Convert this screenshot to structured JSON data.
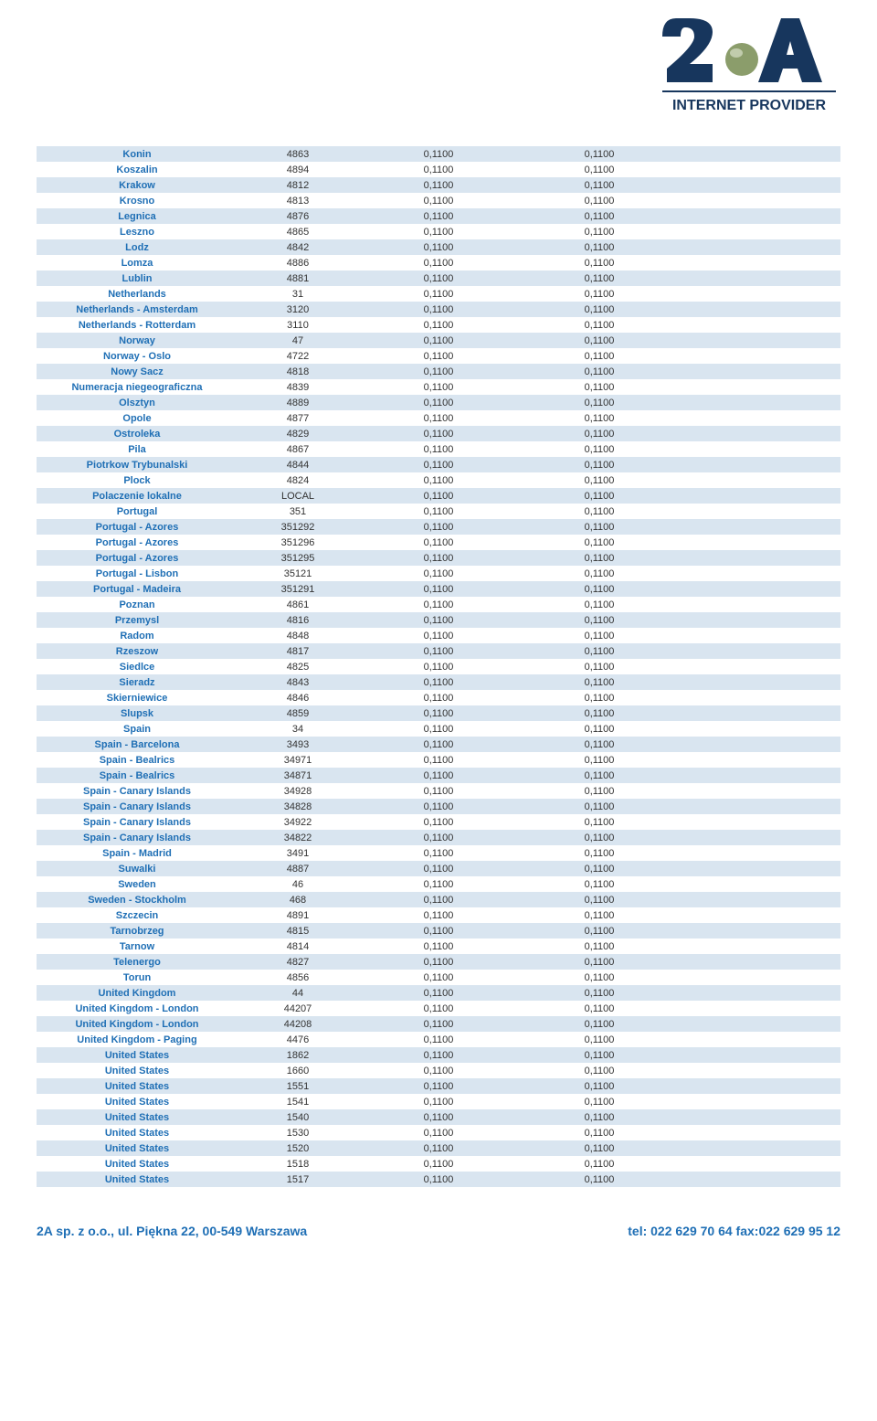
{
  "logo": {
    "main_text": "2A",
    "tagline": "INTERNET PROVIDER",
    "primary_color": "#17365d",
    "sphere_color": "#8b9d6b"
  },
  "table": {
    "row_bg_odd": "#d9e5f0",
    "row_bg_even": "#ffffff",
    "name_color": "#1f6fb5",
    "value_color": "#333333",
    "font_size": 11,
    "rows": [
      {
        "name": "Konin",
        "code": "4863",
        "v1": "0,1100",
        "v2": "0,1100"
      },
      {
        "name": "Koszalin",
        "code": "4894",
        "v1": "0,1100",
        "v2": "0,1100"
      },
      {
        "name": "Krakow",
        "code": "4812",
        "v1": "0,1100",
        "v2": "0,1100"
      },
      {
        "name": "Krosno",
        "code": "4813",
        "v1": "0,1100",
        "v2": "0,1100"
      },
      {
        "name": "Legnica",
        "code": "4876",
        "v1": "0,1100",
        "v2": "0,1100"
      },
      {
        "name": "Leszno",
        "code": "4865",
        "v1": "0,1100",
        "v2": "0,1100"
      },
      {
        "name": "Lodz",
        "code": "4842",
        "v1": "0,1100",
        "v2": "0,1100"
      },
      {
        "name": "Lomza",
        "code": "4886",
        "v1": "0,1100",
        "v2": "0,1100"
      },
      {
        "name": "Lublin",
        "code": "4881",
        "v1": "0,1100",
        "v2": "0,1100"
      },
      {
        "name": "Netherlands",
        "code": "31",
        "v1": "0,1100",
        "v2": "0,1100"
      },
      {
        "name": "Netherlands - Amsterdam",
        "code": "3120",
        "v1": "0,1100",
        "v2": "0,1100"
      },
      {
        "name": "Netherlands - Rotterdam",
        "code": "3110",
        "v1": "0,1100",
        "v2": "0,1100"
      },
      {
        "name": "Norway",
        "code": "47",
        "v1": "0,1100",
        "v2": "0,1100"
      },
      {
        "name": "Norway - Oslo",
        "code": "4722",
        "v1": "0,1100",
        "v2": "0,1100"
      },
      {
        "name": "Nowy Sacz",
        "code": "4818",
        "v1": "0,1100",
        "v2": "0,1100"
      },
      {
        "name": "Numeracja niegeograficzna",
        "code": "4839",
        "v1": "0,1100",
        "v2": "0,1100"
      },
      {
        "name": "Olsztyn",
        "code": "4889",
        "v1": "0,1100",
        "v2": "0,1100"
      },
      {
        "name": "Opole",
        "code": "4877",
        "v1": "0,1100",
        "v2": "0,1100"
      },
      {
        "name": "Ostroleka",
        "code": "4829",
        "v1": "0,1100",
        "v2": "0,1100"
      },
      {
        "name": "Pila",
        "code": "4867",
        "v1": "0,1100",
        "v2": "0,1100"
      },
      {
        "name": "Piotrkow Trybunalski",
        "code": "4844",
        "v1": "0,1100",
        "v2": "0,1100"
      },
      {
        "name": "Plock",
        "code": "4824",
        "v1": "0,1100",
        "v2": "0,1100"
      },
      {
        "name": "Polaczenie lokalne",
        "code": "LOCAL",
        "v1": "0,1100",
        "v2": "0,1100"
      },
      {
        "name": "Portugal",
        "code": "351",
        "v1": "0,1100",
        "v2": "0,1100"
      },
      {
        "name": "Portugal - Azores",
        "code": "351292",
        "v1": "0,1100",
        "v2": "0,1100"
      },
      {
        "name": "Portugal - Azores",
        "code": "351296",
        "v1": "0,1100",
        "v2": "0,1100"
      },
      {
        "name": "Portugal - Azores",
        "code": "351295",
        "v1": "0,1100",
        "v2": "0,1100"
      },
      {
        "name": "Portugal - Lisbon",
        "code": "35121",
        "v1": "0,1100",
        "v2": "0,1100"
      },
      {
        "name": "Portugal - Madeira",
        "code": "351291",
        "v1": "0,1100",
        "v2": "0,1100"
      },
      {
        "name": "Poznan",
        "code": "4861",
        "v1": "0,1100",
        "v2": "0,1100"
      },
      {
        "name": "Przemysl",
        "code": "4816",
        "v1": "0,1100",
        "v2": "0,1100"
      },
      {
        "name": "Radom",
        "code": "4848",
        "v1": "0,1100",
        "v2": "0,1100"
      },
      {
        "name": "Rzeszow",
        "code": "4817",
        "v1": "0,1100",
        "v2": "0,1100"
      },
      {
        "name": "Siedlce",
        "code": "4825",
        "v1": "0,1100",
        "v2": "0,1100"
      },
      {
        "name": "Sieradz",
        "code": "4843",
        "v1": "0,1100",
        "v2": "0,1100"
      },
      {
        "name": "Skierniewice",
        "code": "4846",
        "v1": "0,1100",
        "v2": "0,1100"
      },
      {
        "name": "Slupsk",
        "code": "4859",
        "v1": "0,1100",
        "v2": "0,1100"
      },
      {
        "name": "Spain",
        "code": "34",
        "v1": "0,1100",
        "v2": "0,1100"
      },
      {
        "name": "Spain - Barcelona",
        "code": "3493",
        "v1": "0,1100",
        "v2": "0,1100"
      },
      {
        "name": "Spain - Bealrics",
        "code": "34971",
        "v1": "0,1100",
        "v2": "0,1100"
      },
      {
        "name": "Spain - Bealrics",
        "code": "34871",
        "v1": "0,1100",
        "v2": "0,1100"
      },
      {
        "name": "Spain - Canary Islands",
        "code": "34928",
        "v1": "0,1100",
        "v2": "0,1100"
      },
      {
        "name": "Spain - Canary Islands",
        "code": "34828",
        "v1": "0,1100",
        "v2": "0,1100"
      },
      {
        "name": "Spain - Canary Islands",
        "code": "34922",
        "v1": "0,1100",
        "v2": "0,1100"
      },
      {
        "name": "Spain - Canary Islands",
        "code": "34822",
        "v1": "0,1100",
        "v2": "0,1100"
      },
      {
        "name": "Spain - Madrid",
        "code": "3491",
        "v1": "0,1100",
        "v2": "0,1100"
      },
      {
        "name": "Suwalki",
        "code": "4887",
        "v1": "0,1100",
        "v2": "0,1100"
      },
      {
        "name": "Sweden",
        "code": "46",
        "v1": "0,1100",
        "v2": "0,1100"
      },
      {
        "name": "Sweden - Stockholm",
        "code": "468",
        "v1": "0,1100",
        "v2": "0,1100"
      },
      {
        "name": "Szczecin",
        "code": "4891",
        "v1": "0,1100",
        "v2": "0,1100"
      },
      {
        "name": "Tarnobrzeg",
        "code": "4815",
        "v1": "0,1100",
        "v2": "0,1100"
      },
      {
        "name": "Tarnow",
        "code": "4814",
        "v1": "0,1100",
        "v2": "0,1100"
      },
      {
        "name": "Telenergo",
        "code": "4827",
        "v1": "0,1100",
        "v2": "0,1100"
      },
      {
        "name": "Torun",
        "code": "4856",
        "v1": "0,1100",
        "v2": "0,1100"
      },
      {
        "name": "United Kingdom",
        "code": "44",
        "v1": "0,1100",
        "v2": "0,1100"
      },
      {
        "name": "United Kingdom - London",
        "code": "44207",
        "v1": "0,1100",
        "v2": "0,1100"
      },
      {
        "name": "United Kingdom - London",
        "code": "44208",
        "v1": "0,1100",
        "v2": "0,1100"
      },
      {
        "name": "United Kingdom - Paging",
        "code": "4476",
        "v1": "0,1100",
        "v2": "0,1100"
      },
      {
        "name": "United States",
        "code": "1862",
        "v1": "0,1100",
        "v2": "0,1100"
      },
      {
        "name": "United States",
        "code": "1660",
        "v1": "0,1100",
        "v2": "0,1100"
      },
      {
        "name": "United States",
        "code": "1551",
        "v1": "0,1100",
        "v2": "0,1100"
      },
      {
        "name": "United States",
        "code": "1541",
        "v1": "0,1100",
        "v2": "0,1100"
      },
      {
        "name": "United States",
        "code": "1540",
        "v1": "0,1100",
        "v2": "0,1100"
      },
      {
        "name": "United States",
        "code": "1530",
        "v1": "0,1100",
        "v2": "0,1100"
      },
      {
        "name": "United States",
        "code": "1520",
        "v1": "0,1100",
        "v2": "0,1100"
      },
      {
        "name": "United States",
        "code": "1518",
        "v1": "0,1100",
        "v2": "0,1100"
      },
      {
        "name": "United States",
        "code": "1517",
        "v1": "0,1100",
        "v2": "0,1100"
      }
    ]
  },
  "footer": {
    "left": "2A sp. z o.o., ul. Piękna 22, 00-549 Warszawa",
    "right": "tel: 022 629 70 64   fax:022 629 95 12",
    "color": "#1f6fb5"
  }
}
